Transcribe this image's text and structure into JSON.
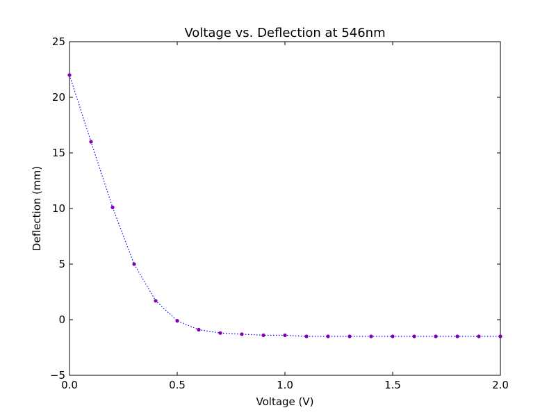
{
  "chart_data": {
    "type": "line",
    "title": "Voltage vs. Deflection at 546nm",
    "xlabel": "Voltage (V)",
    "ylabel": "Deflection (mm)",
    "xlim": [
      0.0,
      2.0
    ],
    "ylim": [
      -5,
      25
    ],
    "x_ticks": [
      "0.0",
      "0.5",
      "1.0",
      "1.5",
      "2.0"
    ],
    "y_ticks": [
      "−5",
      "0",
      "5",
      "10",
      "15",
      "20",
      "25"
    ],
    "grid": false,
    "legend": "none",
    "series": [
      {
        "line_style": "dotted",
        "line_color": "#0000ff",
        "marker_color": "#7f00b2",
        "x": [
          0.0,
          0.1,
          0.2,
          0.3,
          0.4,
          0.5,
          0.6,
          0.7,
          0.8,
          0.9,
          1.0,
          1.1,
          1.2,
          1.3,
          1.4,
          1.5,
          1.6,
          1.7,
          1.8,
          1.9,
          2.0
        ],
        "values": [
          22.0,
          16.0,
          10.1,
          5.0,
          1.7,
          -0.1,
          -0.9,
          -1.2,
          -1.3,
          -1.4,
          -1.4,
          -1.5,
          -1.5,
          -1.5,
          -1.5,
          -1.5,
          -1.5,
          -1.5,
          -1.5,
          -1.5,
          -1.5
        ]
      }
    ]
  }
}
